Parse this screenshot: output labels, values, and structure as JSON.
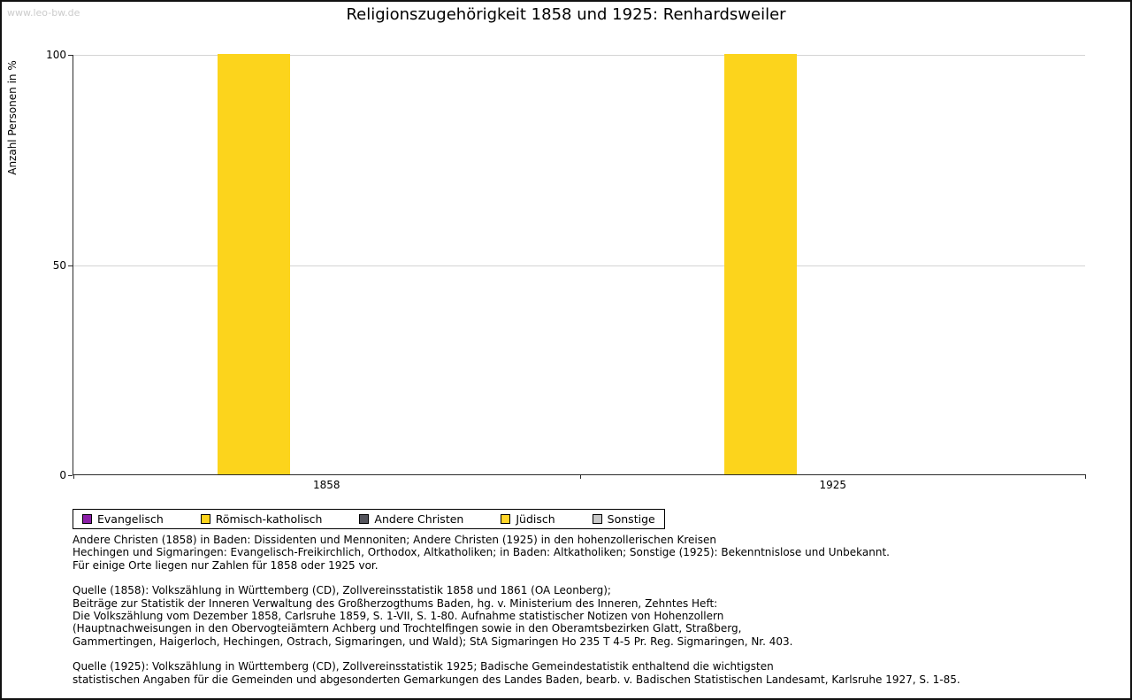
{
  "watermark": "www.leo-bw.de",
  "chart_data": {
    "type": "bar",
    "title": "Religionszugehörigkeit 1858 und 1925: Renhardsweiler",
    "ylabel": "Anzahl Personen in %",
    "categories": [
      "1858",
      "1925"
    ],
    "series": [
      {
        "name": "Evangelisch",
        "color": "#8c1fa8",
        "values": [
          0,
          0
        ]
      },
      {
        "name": "Römisch-katholisch",
        "color": "#fcd41c",
        "values": [
          100,
          100
        ]
      },
      {
        "name": "Andere Christen",
        "color": "#54545c",
        "values": [
          0,
          0
        ]
      },
      {
        "name": "Jüdisch",
        "color": "#ffd529",
        "values": [
          0,
          0
        ]
      },
      {
        "name": "Sonstige",
        "color": "#c8c8c8",
        "values": [
          0,
          0
        ]
      }
    ],
    "ylim": [
      0,
      100
    ],
    "yticks": [
      0,
      50,
      100
    ],
    "grid": true,
    "legend_position": "bottom"
  },
  "notes": {
    "para1": "Andere Christen (1858) in Baden: Dissidenten und Mennoniten; Andere Christen (1925) in den hohenzollerischen Kreisen\nHechingen und Sigmaringen: Evangelisch-Freikirchlich, Orthodox, Altkatholiken; in Baden: Altkatholiken; Sonstige (1925): Bekenntnislose und Unbekannt.\nFür einige Orte liegen nur Zahlen für 1858 oder 1925 vor.",
    "para2": "Quelle (1858): Volkszählung in Württemberg (CD), Zollvereinsstatistik 1858 und 1861 (OA Leonberg);\nBeiträge zur Statistik der Inneren Verwaltung des Großherzogthums Baden, hg. v. Ministerium des Inneren, Zehntes Heft:\nDie Volkszählung vom Dezember 1858, Carlsruhe 1859, S. 1-VII, S. 1-80. Aufnahme statistischer Notizen von Hohenzollern\n(Hauptnachweisungen in den Obervogteiämtern Achberg und Trochtelfingen sowie in den Oberamtsbezirken Glatt, Straßberg,\nGammertingen, Haigerloch, Hechingen, Ostrach, Sigmaringen, und Wald); StA Sigmaringen Ho 235 T 4-5 Pr. Reg. Sigmaringen, Nr. 403.",
    "para3": "Quelle (1925): Volkszählung in Württemberg (CD), Zollvereinsstatistik 1925; Badische Gemeindestatistik enthaltend die wichtigsten\nstatistischen Angaben für die Gemeinden und abgesonderten Gemarkungen des Landes Baden, bearb. v. Badischen Statistischen Landesamt, Karlsruhe 1927, S. 1-85."
  }
}
